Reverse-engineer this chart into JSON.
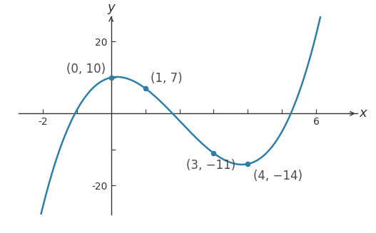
{
  "points": [
    [
      0,
      10
    ],
    [
      1,
      7
    ],
    [
      3,
      -11
    ],
    [
      4,
      -14
    ]
  ],
  "point_labels": [
    "(0, 10)",
    "(1, 7)",
    "(3, −11)",
    "(4, −14)"
  ],
  "curve_color": "#2e7ea6",
  "point_color": "#2e7ea6",
  "x_range": [
    -2.7,
    7.2
  ],
  "y_range": [
    -28,
    27
  ],
  "x_ticks": [
    -2,
    -1,
    1,
    2,
    3,
    4,
    5,
    6
  ],
  "y_ticks": [
    -20,
    -10,
    10,
    20
  ],
  "xlabel": "x",
  "ylabel": "y",
  "background_color": "#ffffff",
  "plot_x_start": -2.3,
  "plot_x_end": 6.6,
  "font_size_labels": 12,
  "font_size_ticks": 10,
  "font_size_axis_labels": 13
}
